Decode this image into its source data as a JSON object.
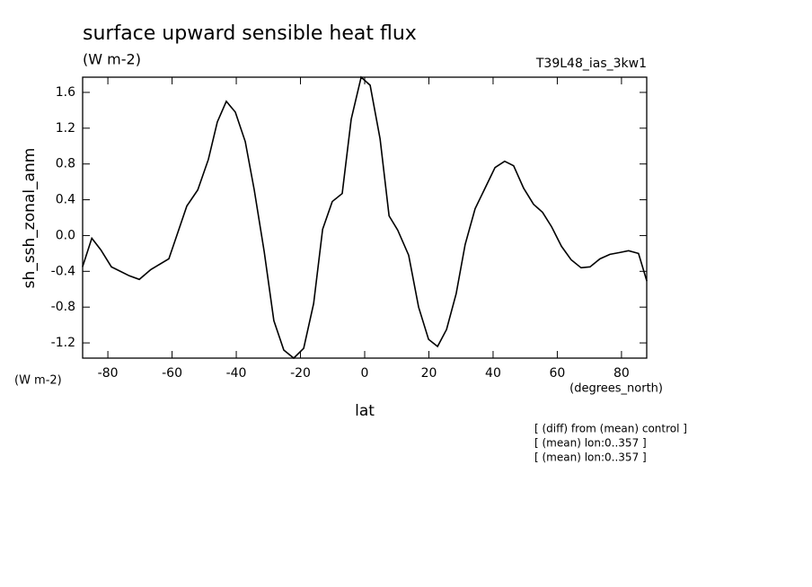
{
  "chart_data": {
    "type": "line",
    "title": "surface upward sensible heat flux",
    "subtitle": "(W m-2)",
    "run_label": "T39L48_ias_3kw1",
    "y_label": "sh_ssh_zonal_anm",
    "y_units": "(W m-2)",
    "x_units": "(degrees_north)",
    "x_label": "lat",
    "notes": [
      "[ (diff) from (mean) control ]",
      "[ (mean) lon:0..357 ]",
      "[ (mean) lon:0..357 ]"
    ],
    "color": "#000000",
    "xlim": [
      -87.86,
      87.86
    ],
    "ylim": [
      -1.37,
      1.77
    ],
    "xticks": [
      -80,
      -60,
      -40,
      -20,
      0,
      20,
      40,
      60,
      80
    ],
    "yticks": [
      1.6,
      1.2,
      0.8,
      0.4,
      {
        "value": 0,
        "label": "0.0"
      },
      -0.4,
      -0.8,
      -1.2
    ],
    "x": [
      -87.9,
      -85.0,
      -82.2,
      -78.9,
      -73.3,
      -70.2,
      -66.6,
      -61.0,
      -55.4,
      -52.0,
      -48.7,
      -45.9,
      -43.1,
      -40.3,
      -37.2,
      -34.4,
      -31.3,
      -28.3,
      -25.2,
      -22.1,
      -19.0,
      -15.9,
      -13.1,
      -10.1,
      -7.0,
      -4.2,
      -1.1,
      1.7,
      4.8,
      7.6,
      10.3,
      13.7,
      16.8,
      19.9,
      22.7,
      25.5,
      28.5,
      31.3,
      34.4,
      37.5,
      40.6,
      43.6,
      46.4,
      49.5,
      52.6,
      55.4,
      58.2,
      61.3,
      64.3,
      67.4,
      70.2,
      73.3,
      76.4,
      79.4,
      82.2,
      85.3,
      87.9
    ],
    "values": [
      -0.35,
      -0.03,
      -0.16,
      -0.35,
      -0.45,
      -0.49,
      -0.38,
      -0.26,
      0.33,
      0.51,
      0.85,
      1.27,
      1.5,
      1.38,
      1.05,
      0.51,
      -0.18,
      -0.95,
      -1.28,
      -1.37,
      -1.26,
      -0.76,
      0.07,
      0.38,
      0.47,
      1.3,
      1.77,
      1.68,
      1.08,
      0.22,
      0.06,
      -0.22,
      -0.8,
      -1.16,
      -1.24,
      -1.05,
      -0.65,
      -0.1,
      0.3,
      0.53,
      0.76,
      0.83,
      0.78,
      0.53,
      0.35,
      0.26,
      0.1,
      -0.12,
      -0.27,
      -0.36,
      -0.35,
      -0.26,
      -0.21,
      -0.19,
      -0.17,
      -0.2,
      -0.51
    ]
  }
}
